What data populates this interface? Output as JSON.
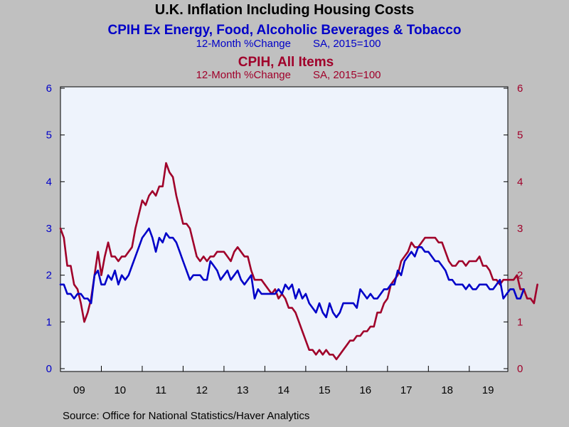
{
  "chart_data": {
    "type": "line",
    "title": "U.K. Inflation Including Housing Costs",
    "series": [
      {
        "name": "CPIH Ex Energy, Food, Alcoholic Beverages & Tobacco",
        "subtitle_left": "12-Month %Change",
        "subtitle_right": "SA, 2015=100",
        "color": "#0000c8",
        "axis": "left",
        "start": "2009-01",
        "values": [
          1.8,
          1.8,
          1.6,
          1.6,
          1.5,
          1.6,
          1.6,
          1.5,
          1.5,
          1.4,
          2.0,
          2.1,
          1.8,
          1.8,
          2.0,
          1.9,
          2.1,
          1.8,
          2.0,
          1.9,
          2.0,
          2.2,
          2.4,
          2.6,
          2.8,
          2.9,
          3.0,
          2.8,
          2.5,
          2.8,
          2.7,
          2.9,
          2.8,
          2.8,
          2.7,
          2.5,
          2.3,
          2.1,
          1.9,
          2.0,
          2.0,
          2.0,
          1.9,
          1.9,
          2.3,
          2.2,
          2.1,
          1.9,
          2.0,
          2.1,
          1.9,
          2.0,
          2.1,
          1.9,
          1.8,
          1.9,
          2.0,
          1.5,
          1.7,
          1.6,
          1.6,
          1.6,
          1.6,
          1.6,
          1.7,
          1.6,
          1.8,
          1.7,
          1.8,
          1.5,
          1.7,
          1.5,
          1.6,
          1.4,
          1.3,
          1.2,
          1.4,
          1.2,
          1.1,
          1.4,
          1.2,
          1.1,
          1.2,
          1.4,
          1.4,
          1.4,
          1.4,
          1.3,
          1.7,
          1.6,
          1.5,
          1.6,
          1.5,
          1.5,
          1.6,
          1.7,
          1.7,
          1.8,
          1.8,
          2.1,
          2.0,
          2.3,
          2.4,
          2.5,
          2.4,
          2.6,
          2.6,
          2.5,
          2.5,
          2.4,
          2.3,
          2.3,
          2.2,
          2.1,
          1.9,
          1.9,
          1.8,
          1.8,
          1.8,
          1.7,
          1.8,
          1.7,
          1.7,
          1.8,
          1.8,
          1.8,
          1.7,
          1.7,
          1.8,
          1.9,
          1.5,
          1.6,
          1.7,
          1.7,
          1.5,
          1.5,
          1.7
        ]
      },
      {
        "name": "CPIH, All Items",
        "subtitle_left": "12-Month %Change",
        "subtitle_right": "SA, 2015=100",
        "color": "#a0002a",
        "axis": "right",
        "start": "2009-01",
        "values": [
          3.0,
          2.8,
          2.2,
          2.2,
          1.8,
          1.7,
          1.4,
          1.0,
          1.2,
          1.5,
          2.0,
          2.5,
          2.0,
          2.4,
          2.7,
          2.4,
          2.4,
          2.3,
          2.4,
          2.4,
          2.5,
          2.6,
          3.0,
          3.3,
          3.6,
          3.5,
          3.7,
          3.8,
          3.7,
          3.9,
          3.9,
          4.4,
          4.2,
          4.1,
          3.7,
          3.4,
          3.1,
          3.1,
          3.0,
          2.7,
          2.4,
          2.3,
          2.4,
          2.3,
          2.4,
          2.4,
          2.5,
          2.5,
          2.5,
          2.4,
          2.3,
          2.5,
          2.6,
          2.5,
          2.4,
          2.4,
          2.1,
          1.9,
          1.9,
          1.9,
          1.8,
          1.7,
          1.6,
          1.7,
          1.5,
          1.6,
          1.5,
          1.3,
          1.3,
          1.2,
          1.0,
          0.8,
          0.6,
          0.4,
          0.4,
          0.3,
          0.4,
          0.3,
          0.4,
          0.3,
          0.3,
          0.2,
          0.3,
          0.4,
          0.5,
          0.6,
          0.6,
          0.7,
          0.7,
          0.8,
          0.8,
          0.9,
          0.9,
          1.2,
          1.2,
          1.4,
          1.5,
          1.8,
          1.9,
          2.0,
          2.3,
          2.4,
          2.5,
          2.7,
          2.6,
          2.6,
          2.7,
          2.8,
          2.8,
          2.8,
          2.8,
          2.7,
          2.7,
          2.5,
          2.3,
          2.2,
          2.2,
          2.3,
          2.3,
          2.2,
          2.3,
          2.3,
          2.3,
          2.4,
          2.2,
          2.2,
          2.1,
          1.9,
          1.9,
          1.8,
          1.9,
          1.9,
          1.9,
          1.9,
          2.0,
          1.7,
          1.7,
          1.5,
          1.5,
          1.4,
          1.8
        ]
      }
    ],
    "x_ticks": [
      "09",
      "10",
      "11",
      "12",
      "13",
      "14",
      "15",
      "16",
      "17",
      "18",
      "19"
    ],
    "y_left_ticks": [
      "0",
      "1",
      "2",
      "3",
      "4",
      "5",
      "6"
    ],
    "y_right_ticks": [
      "0",
      "1",
      "2",
      "3",
      "4",
      "5",
      "6"
    ],
    "ylim": [
      0,
      6
    ],
    "grid": false,
    "legend": "none",
    "plot_background": "#eef3fc",
    "page_background": "#c0c0c0"
  },
  "source": "Source:  Office for National Statistics/Haver Analytics"
}
